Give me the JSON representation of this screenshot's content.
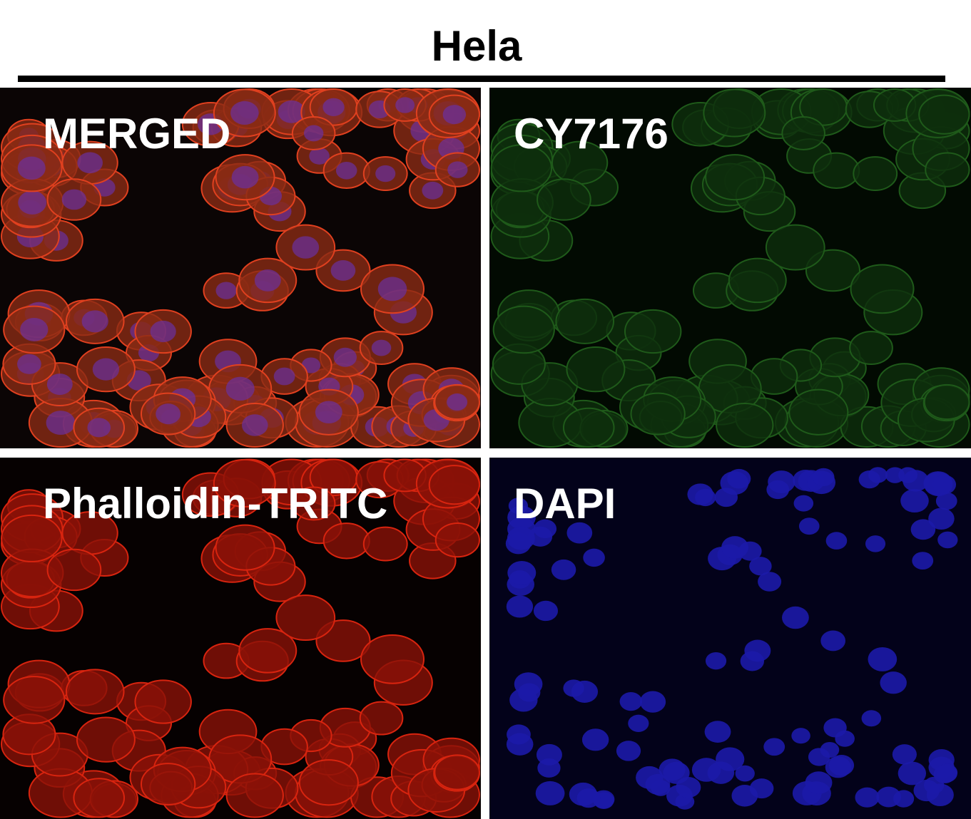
{
  "figure": {
    "title": "Hela",
    "panels": [
      {
        "label": "MERGED",
        "channel": "merged",
        "color": "#d8321c"
      },
      {
        "label": "CY7176",
        "channel": "green",
        "color": "#1f6a1c"
      },
      {
        "label": "Phalloidin-TRITC",
        "channel": "red",
        "color": "#c8200f"
      },
      {
        "label": "DAPI",
        "channel": "blue",
        "color": "#1a18a0"
      }
    ]
  }
}
